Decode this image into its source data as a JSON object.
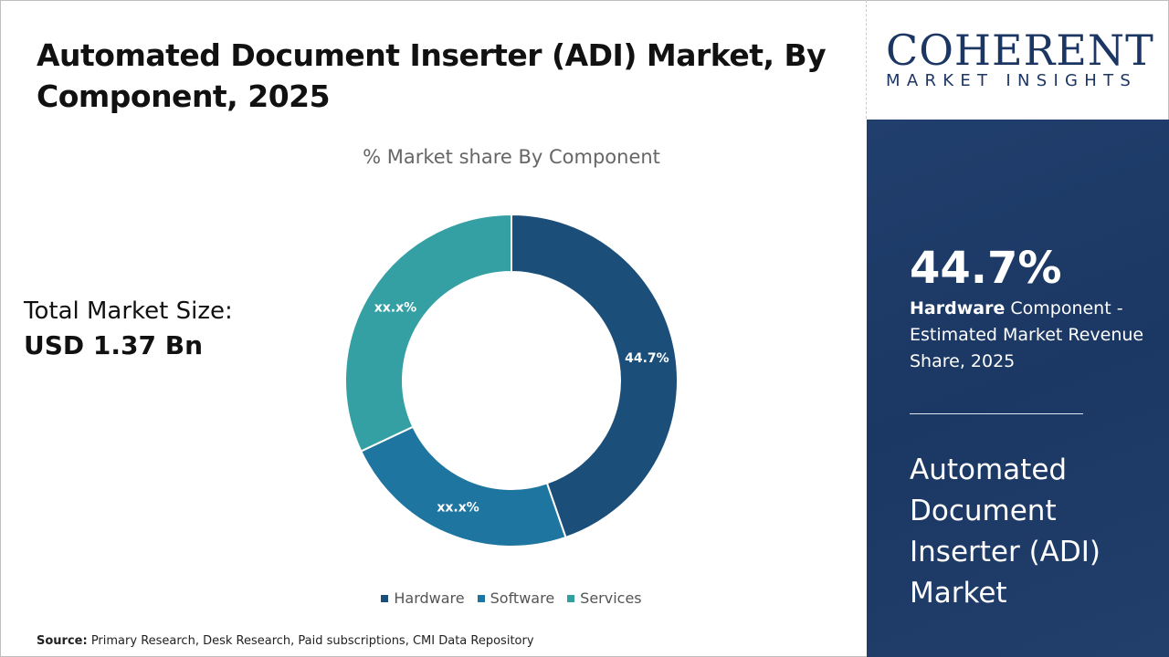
{
  "title": "Automated Document Inserter (ADI) Market, By Component, 2025",
  "total_market": {
    "label": "Total Market Size:",
    "value": "USD 1.37 Bn"
  },
  "source": {
    "label": "Source:",
    "text": " Primary Research, Desk Research, Paid subscriptions, CMI Data Repository"
  },
  "logo": {
    "main": "COHERENT",
    "sub": "MARKET INSIGHTS"
  },
  "panel": {
    "percent": "44.7%",
    "desc_bold": "Hardware",
    "desc_rest": " Component - Estimated Market Revenue Share, 2025",
    "market_name": "Automated Document Inserter (ADI) Market"
  },
  "chart_data": {
    "type": "pie",
    "subtype": "donut",
    "title": "% Market share By Component",
    "categories": [
      "Hardware",
      "Software",
      "Services"
    ],
    "values": [
      44.7,
      23.3,
      32.0
    ],
    "data_labels": [
      "44.7%",
      "xx.x%",
      "xx.x%"
    ],
    "colors": [
      "#1b4f7a",
      "#1e75a0",
      "#35a0a3"
    ],
    "legend": "bottom"
  }
}
